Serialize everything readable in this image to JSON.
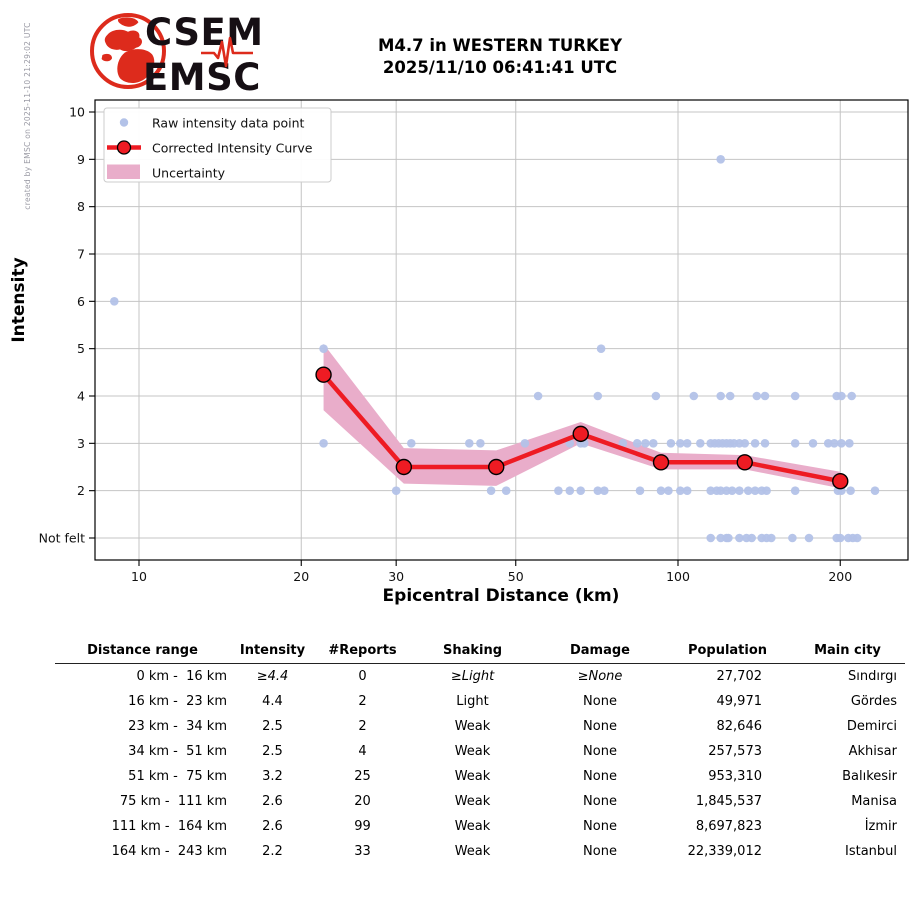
{
  "meta": {
    "created_by": "created by EMSC on 2025-11-10 21:29:02 UTC"
  },
  "logo": {
    "line1": "CSEM",
    "line2": "EMSC"
  },
  "header": {
    "title_line1": "M4.7 in WESTERN TURKEY",
    "title_line2": "2025/11/10 06:41:41 UTC"
  },
  "chart_data": {
    "type": "scatter",
    "x_scale": "log",
    "xlabel": "Epicentral Distance (km)",
    "ylabel": "Intensity",
    "x_ticks": [
      10,
      20,
      30,
      50,
      100,
      200
    ],
    "y_ticks": [
      {
        "value": 1,
        "label": "Not felt"
      },
      {
        "value": 2,
        "label": "2"
      },
      {
        "value": 3,
        "label": "3"
      },
      {
        "value": 4,
        "label": "4"
      },
      {
        "value": 5,
        "label": "5"
      },
      {
        "value": 6,
        "label": "6"
      },
      {
        "value": 7,
        "label": "7"
      },
      {
        "value": 8,
        "label": "8"
      },
      {
        "value": 9,
        "label": "9"
      },
      {
        "value": 10,
        "label": "10"
      }
    ],
    "xlim": [
      8.3,
      267
    ],
    "ylim": [
      0.54,
      10.25
    ],
    "grid": true,
    "legend_position": "upper-left",
    "legend": [
      "Raw intensity data point",
      "Corrected Intensity Curve",
      "Uncertainty"
    ],
    "colors": {
      "scatter": "#b3c2e8",
      "curve": "#ee1b23",
      "band": "#e9adca",
      "grid": "#c4c4c4"
    },
    "scatter_points": [
      [
        9,
        6
      ],
      [
        120,
        9
      ],
      [
        22,
        5
      ],
      [
        72,
        5
      ],
      [
        55,
        4
      ],
      [
        71,
        4
      ],
      [
        91,
        4
      ],
      [
        107,
        4
      ],
      [
        120,
        4
      ],
      [
        125,
        4
      ],
      [
        140,
        4
      ],
      [
        145,
        4
      ],
      [
        165,
        4
      ],
      [
        197,
        4
      ],
      [
        201,
        4
      ],
      [
        210,
        4
      ],
      [
        22,
        3
      ],
      [
        32,
        3
      ],
      [
        41,
        3
      ],
      [
        43,
        3
      ],
      [
        52,
        3
      ],
      [
        63,
        3
      ],
      [
        66,
        3
      ],
      [
        67,
        3
      ],
      [
        79,
        3
      ],
      [
        84,
        3
      ],
      [
        87,
        3
      ],
      [
        90,
        3
      ],
      [
        97,
        3
      ],
      [
        101,
        3
      ],
      [
        104,
        3
      ],
      [
        110,
        3
      ],
      [
        115,
        3
      ],
      [
        117,
        3
      ],
      [
        119,
        3
      ],
      [
        121,
        3
      ],
      [
        123,
        3
      ],
      [
        125,
        3
      ],
      [
        127,
        3
      ],
      [
        130,
        3
      ],
      [
        133,
        3
      ],
      [
        139,
        3
      ],
      [
        145,
        3
      ],
      [
        165,
        3
      ],
      [
        178,
        3
      ],
      [
        190,
        3
      ],
      [
        195,
        3
      ],
      [
        201,
        3
      ],
      [
        208,
        3
      ],
      [
        30,
        2
      ],
      [
        45,
        2
      ],
      [
        48,
        2
      ],
      [
        60,
        2
      ],
      [
        63,
        2
      ],
      [
        66,
        2
      ],
      [
        71,
        2
      ],
      [
        73,
        2
      ],
      [
        85,
        2
      ],
      [
        93,
        2
      ],
      [
        96,
        2
      ],
      [
        101,
        2
      ],
      [
        104,
        2
      ],
      [
        115,
        2
      ],
      [
        118,
        2
      ],
      [
        120,
        2
      ],
      [
        123,
        2
      ],
      [
        126,
        2
      ],
      [
        130,
        2
      ],
      [
        135,
        2
      ],
      [
        139,
        2
      ],
      [
        143,
        2
      ],
      [
        146,
        2
      ],
      [
        165,
        2
      ],
      [
        198,
        2
      ],
      [
        201,
        2
      ],
      [
        209,
        2
      ],
      [
        232,
        2
      ],
      [
        115,
        1
      ],
      [
        120,
        1
      ],
      [
        123,
        1
      ],
      [
        124,
        1
      ],
      [
        130,
        1
      ],
      [
        134,
        1
      ],
      [
        137,
        1
      ],
      [
        143,
        1
      ],
      [
        146,
        1
      ],
      [
        149,
        1
      ],
      [
        163,
        1
      ],
      [
        175,
        1
      ],
      [
        197,
        1
      ],
      [
        200,
        1
      ],
      [
        207,
        1
      ],
      [
        211,
        1
      ],
      [
        215,
        1
      ]
    ],
    "curve": [
      [
        22,
        4.45
      ],
      [
        31,
        2.5
      ],
      [
        46,
        2.5
      ],
      [
        66,
        3.2
      ],
      [
        93,
        2.6
      ],
      [
        133,
        2.6
      ],
      [
        200,
        2.2
      ]
    ],
    "band_upper": [
      [
        22,
        5.1
      ],
      [
        31,
        2.9
      ],
      [
        46,
        2.85
      ],
      [
        66,
        3.45
      ],
      [
        93,
        2.8
      ],
      [
        133,
        2.75
      ],
      [
        200,
        2.4
      ]
    ],
    "band_lower": [
      [
        22,
        3.7
      ],
      [
        31,
        2.15
      ],
      [
        46,
        2.1
      ],
      [
        66,
        3.0
      ],
      [
        93,
        2.45
      ],
      [
        133,
        2.45
      ],
      [
        200,
        2.05
      ]
    ]
  },
  "table": {
    "columns": [
      "Distance range",
      "Intensity",
      "#Reports",
      "Shaking",
      "Damage",
      "Population",
      "Main city"
    ],
    "rows": [
      {
        "cells": [
          "0 km -  16 km",
          "≥4.4",
          "0",
          "≥Light",
          "≥None",
          "27,702",
          "Sındırgı"
        ],
        "italic_cols": [
          1,
          3,
          4
        ]
      },
      {
        "cells": [
          "16 km -  23 km",
          "4.4",
          "2",
          "Light",
          "None",
          "49,971",
          "Gördes"
        ],
        "italic_cols": []
      },
      {
        "cells": [
          "23 km -  34 km",
          "2.5",
          "2",
          "Weak",
          "None",
          "82,646",
          "Demirci"
        ],
        "italic_cols": []
      },
      {
        "cells": [
          "34 km -  51 km",
          "2.5",
          "4",
          "Weak",
          "None",
          "257,573",
          "Akhisar"
        ],
        "italic_cols": []
      },
      {
        "cells": [
          "51 km -  75 km",
          "3.2",
          "25",
          "Weak",
          "None",
          "953,310",
          "Balıkesir"
        ],
        "italic_cols": []
      },
      {
        "cells": [
          "75 km -  111 km",
          "2.6",
          "20",
          "Weak",
          "None",
          "1,845,537",
          "Manisa"
        ],
        "italic_cols": []
      },
      {
        "cells": [
          "111 km -  164 km",
          "2.6",
          "99",
          "Weak",
          "None",
          "8,697,823",
          "İzmir"
        ],
        "italic_cols": []
      },
      {
        "cells": [
          "164 km -  243 km",
          "2.2",
          "33",
          "Weak",
          "None",
          "22,339,012",
          "Istanbul"
        ],
        "italic_cols": []
      }
    ]
  }
}
